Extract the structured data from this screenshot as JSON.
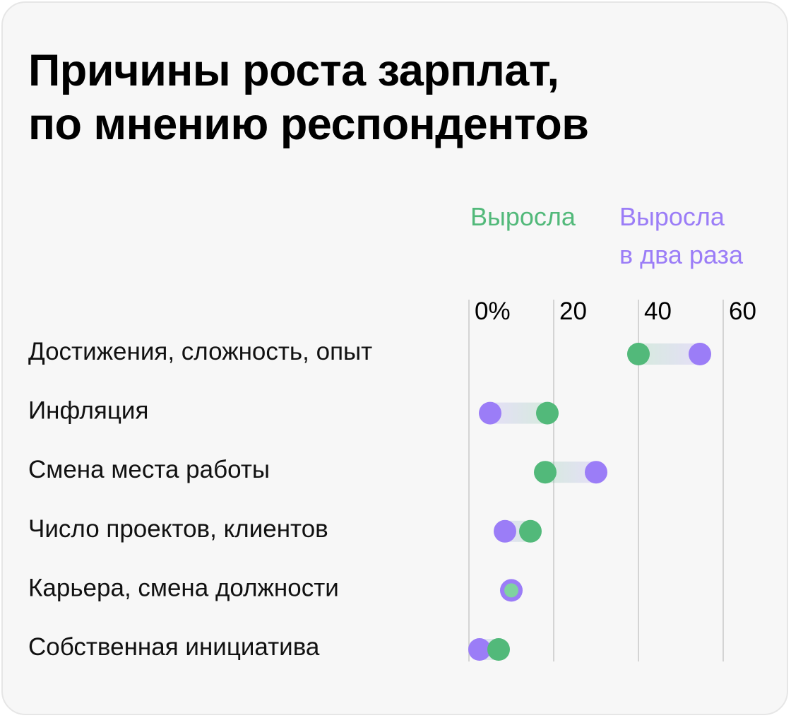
{
  "colors": {
    "green": "#52b97a",
    "purple": "#9b7df7",
    "gridline": "#d4d4d4",
    "card_background": "#f7f7f7"
  },
  "chart_data": {
    "type": "dumbbell",
    "title_lines": [
      "Причины роста зарплат,",
      "по мнению респондентов"
    ],
    "legend": {
      "green": {
        "label": "Выросла"
      },
      "purple": {
        "label_lines": [
          "Выросла",
          "в два раза"
        ]
      }
    },
    "x_ticks": [
      "0%",
      "20",
      "40",
      "60"
    ],
    "x_tick_values": [
      0,
      20,
      40,
      60
    ],
    "xlim": [
      0,
      60
    ],
    "grid": true,
    "categories": [
      "Достижения, сложность, опыт",
      "Инфляция",
      "Смена места работы",
      "Число проектов, клиентов",
      "Карьера, смена должности",
      "Собственная инициатива"
    ],
    "series": [
      {
        "name": "Выросла",
        "color": "#52b97a",
        "values": [
          40,
          18.5,
          18,
          14.5,
          10,
          7
        ]
      },
      {
        "name": "Выросла в два раза",
        "color": "#9b7df7",
        "values": [
          54.5,
          5,
          30,
          8.5,
          10,
          2.5
        ]
      }
    ]
  }
}
